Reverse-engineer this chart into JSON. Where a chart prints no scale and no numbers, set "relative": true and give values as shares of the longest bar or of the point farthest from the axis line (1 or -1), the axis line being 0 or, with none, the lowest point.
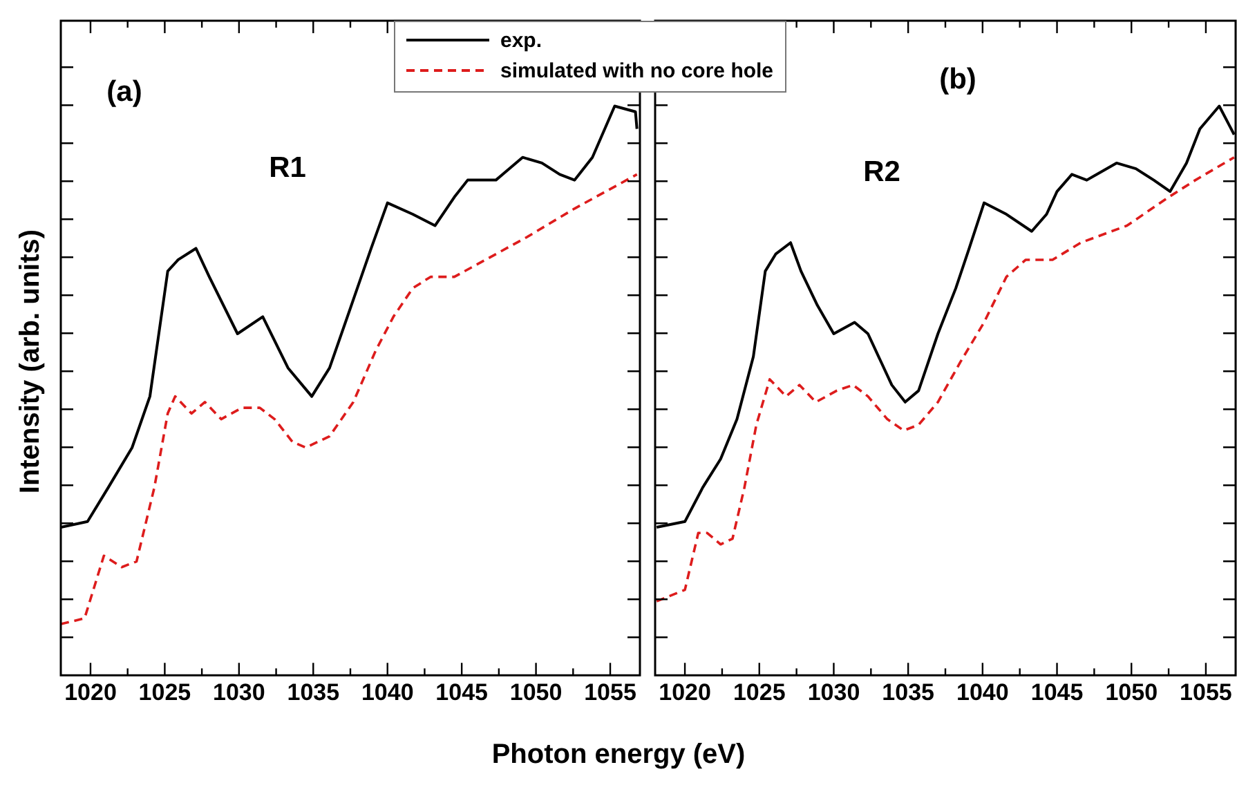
{
  "chart_data": [
    {
      "type": "line",
      "relative": true,
      "ylabel": "Intensity (arb. units)",
      "xlabel": "Photon energy (eV)",
      "legend": "top right",
      "marker": "none",
      "annotations": [
        "(a)",
        "R1"
      ],
      "xlim": [
        1018,
        1057
      ],
      "xticks": [
        1020,
        {
          "value": 1022.5,
          "label": null
        },
        1025,
        {
          "value": 1027.5,
          "label": null
        },
        1030,
        {
          "value": 1032.5,
          "label": null
        },
        1035,
        {
          "value": 1037.5,
          "label": null
        },
        1040,
        {
          "value": 1042.5,
          "label": null
        },
        1045,
        {
          "value": 1047.5,
          "label": null
        },
        1050,
        {
          "value": 1052.5,
          "label": null
        },
        1055
      ],
      "series": [
        {
          "name": "exp.",
          "color": "#000000",
          "line_style": "solid",
          "x": [
            1018.0,
            1019.8,
            1021.2,
            1022.8,
            1024.0,
            1025.2,
            1025.9,
            1027.1,
            1028.0,
            1029.9,
            1031.6,
            1033.3,
            1034.9,
            1036.1,
            1037.7,
            1038.9,
            1040.0,
            1041.7,
            1043.2,
            1044.5,
            1045.4,
            1047.3,
            1049.1,
            1050.4,
            1051.6,
            1052.6,
            1053.8,
            1055.3,
            1056.7,
            1056.8
          ],
          "values": [
            0.26,
            0.27,
            0.33,
            0.4,
            0.49,
            0.71,
            0.73,
            0.75,
            0.7,
            0.6,
            0.63,
            0.54,
            0.49,
            0.54,
            0.66,
            0.75,
            0.83,
            0.81,
            0.79,
            0.84,
            0.87,
            0.87,
            0.91,
            0.9,
            0.88,
            0.87,
            0.91,
            1.0,
            0.99,
            0.96
          ]
        },
        {
          "name": "simulated with no core hole",
          "color": "#dd1c1c",
          "line_style": "dashed",
          "x": [
            1018.0,
            1019.6,
            1020.9,
            1022.1,
            1023.1,
            1024.3,
            1025.2,
            1025.7,
            1026.8,
            1027.7,
            1028.8,
            1030.2,
            1031.4,
            1032.4,
            1033.6,
            1034.5,
            1036.1,
            1037.7,
            1039.2,
            1040.4,
            1041.7,
            1042.9,
            1044.5,
            1046.6,
            1049.4,
            1052.6,
            1056.8
          ],
          "values": [
            0.09,
            0.1,
            0.21,
            0.19,
            0.2,
            0.33,
            0.46,
            0.49,
            0.46,
            0.48,
            0.45,
            0.47,
            0.47,
            0.45,
            0.41,
            0.4,
            0.42,
            0.48,
            0.57,
            0.63,
            0.68,
            0.7,
            0.7,
            0.73,
            0.77,
            0.82,
            0.88
          ]
        }
      ]
    },
    {
      "type": "line",
      "relative": true,
      "marker": "none",
      "annotations": [
        "(b)",
        "R2"
      ],
      "xlim": [
        1018,
        1057
      ],
      "xticks": [
        1020,
        {
          "value": 1022.5,
          "label": null
        },
        1025,
        {
          "value": 1027.5,
          "label": null
        },
        1030,
        {
          "value": 1032.5,
          "label": null
        },
        1035,
        {
          "value": 1037.5,
          "label": null
        },
        1040,
        {
          "value": 1042.5,
          "label": null
        },
        1045,
        {
          "value": 1047.5,
          "label": null
        },
        1050,
        {
          "value": 1052.5,
          "label": null
        },
        1055
      ],
      "series": [
        {
          "color": "#000000",
          "line_style": "solid",
          "x": [
            1018.1,
            1020.0,
            1021.2,
            1022.4,
            1023.5,
            1024.6,
            1025.4,
            1026.1,
            1027.1,
            1027.8,
            1028.9,
            1030.0,
            1031.4,
            1032.3,
            1033.9,
            1034.8,
            1035.7,
            1037.0,
            1038.2,
            1039.1,
            1040.1,
            1041.6,
            1043.3,
            1044.3,
            1045.0,
            1046.0,
            1047.0,
            1049.0,
            1050.3,
            1051.5,
            1052.6,
            1053.7,
            1054.6,
            1055.9,
            1056.9
          ],
          "values": [
            0.26,
            0.27,
            0.33,
            0.38,
            0.45,
            0.56,
            0.71,
            0.74,
            0.76,
            0.71,
            0.65,
            0.6,
            0.62,
            0.6,
            0.51,
            0.48,
            0.5,
            0.6,
            0.68,
            0.75,
            0.83,
            0.81,
            0.78,
            0.81,
            0.85,
            0.88,
            0.87,
            0.9,
            0.89,
            0.87,
            0.85,
            0.9,
            0.96,
            1.0,
            0.95
          ]
        },
        {
          "color": "#dd1c1c",
          "line_style": "dashed",
          "x": [
            1018.1,
            1020.0,
            1020.9,
            1021.5,
            1022.4,
            1023.2,
            1024.0,
            1024.8,
            1025.7,
            1026.8,
            1027.7,
            1028.8,
            1030.2,
            1031.3,
            1032.3,
            1033.6,
            1034.7,
            1035.7,
            1037.0,
            1038.5,
            1040.1,
            1041.6,
            1042.9,
            1044.7,
            1046.6,
            1049.7,
            1052.5,
            1054.3,
            1056.9
          ],
          "values": [
            0.13,
            0.15,
            0.25,
            0.25,
            0.23,
            0.24,
            0.33,
            0.44,
            0.52,
            0.49,
            0.51,
            0.48,
            0.5,
            0.51,
            0.49,
            0.45,
            0.43,
            0.44,
            0.48,
            0.55,
            0.62,
            0.7,
            0.73,
            0.73,
            0.76,
            0.79,
            0.84,
            0.87,
            0.91
          ]
        }
      ]
    }
  ]
}
